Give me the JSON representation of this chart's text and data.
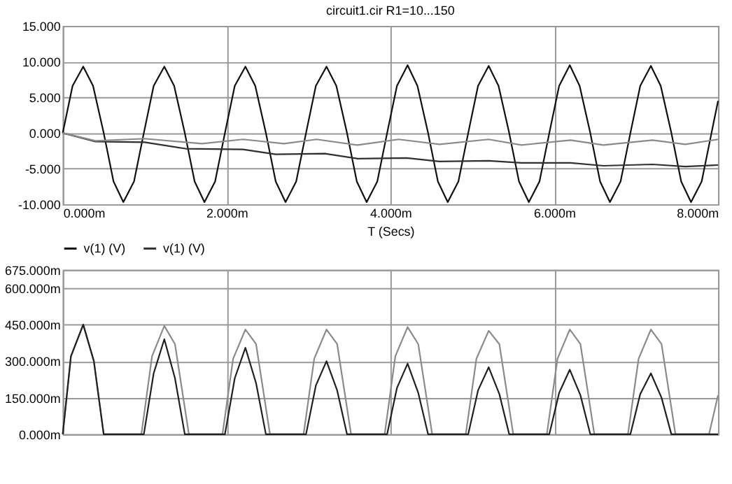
{
  "chart_data": [
    {
      "type": "line",
      "title": "circuit1.cir R1=10...150",
      "xlabel": "T (Secs)",
      "legend": "bottom left",
      "grid": true,
      "xlim": [
        0,
        8
      ],
      "ylim": [
        -10,
        15
      ],
      "xticks": [
        {
          "value": 0,
          "label": "0.000m"
        },
        {
          "value": 2,
          "label": "2.000m"
        },
        {
          "value": 4,
          "label": "4.000m"
        },
        {
          "value": 6,
          "label": "6.000m"
        },
        {
          "value": 8,
          "label": "8.000m"
        }
      ],
      "yticks": [
        {
          "value": -10,
          "label": "-10.000"
        },
        {
          "value": -5,
          "label": "-5.000"
        },
        {
          "value": 0,
          "label": "0.000"
        },
        {
          "value": 5,
          "label": "5.000"
        },
        {
          "value": 10,
          "label": "10.000"
        },
        {
          "value": 15,
          "label": "15.000"
        }
      ],
      "series": [
        {
          "name": "v(1) (V)",
          "color": "#101010",
          "x": [
            0,
            0.12,
            0.25,
            0.37,
            0.5,
            0.62,
            0.74,
            0.87,
            0.99,
            1.11,
            1.24,
            1.36,
            1.49,
            1.61,
            1.73,
            1.86,
            1.98,
            2.1,
            2.23,
            2.35,
            2.48,
            2.6,
            2.72,
            2.85,
            2.97,
            3.09,
            3.22,
            3.34,
            3.47,
            3.59,
            3.71,
            3.84,
            3.96,
            4.08,
            4.21,
            4.33,
            4.46,
            4.58,
            4.7,
            4.83,
            4.95,
            5.07,
            5.2,
            5.32,
            5.45,
            5.57,
            5.69,
            5.82,
            5.94,
            6.06,
            6.19,
            6.31,
            6.44,
            6.56,
            6.68,
            6.81,
            6.93,
            7.05,
            7.18,
            7.3,
            7.43,
            7.55,
            7.67,
            7.8,
            7.92,
            8
          ],
          "values": [
            0,
            6.6,
            9.3,
            6.6,
            0,
            -6.8,
            -9.7,
            -6.8,
            0,
            6.6,
            9.3,
            6.6,
            0,
            -6.8,
            -9.7,
            -6.8,
            0,
            6.6,
            9.3,
            6.6,
            0,
            -6.8,
            -9.7,
            -6.8,
            0,
            6.6,
            9.3,
            6.6,
            0,
            -6.8,
            -9.7,
            -6.8,
            0,
            6.6,
            9.5,
            6.6,
            0,
            -6.8,
            -9.7,
            -6.8,
            0,
            6.6,
            9.4,
            6.6,
            0,
            -6.8,
            -9.7,
            -6.8,
            0,
            6.6,
            9.5,
            6.6,
            0,
            -6.8,
            -9.7,
            -6.8,
            0,
            6.6,
            9.4,
            6.6,
            0,
            -6.8,
            -9.7,
            -6.8,
            0,
            4.5
          ]
        },
        {
          "name": "v(1) (V)",
          "color": "#303030",
          "x": [
            0,
            0.4,
            1,
            1.5,
            2.2,
            2.6,
            3.2,
            3.6,
            4.2,
            4.6,
            5.2,
            5.6,
            6.2,
            6.6,
            7.2,
            7.6,
            8
          ],
          "values": [
            0,
            -1.2,
            -1.3,
            -2.2,
            -2.3,
            -3.0,
            -2.9,
            -3.6,
            -3.5,
            -4.0,
            -3.9,
            -4.2,
            -4.2,
            -4.6,
            -4.4,
            -4.7,
            -4.5
          ]
        },
        {
          "color": "#8a8a8a",
          "x": [
            0,
            0.4,
            1,
            1.7,
            2.2,
            2.7,
            3.1,
            3.6,
            4.1,
            4.6,
            5.2,
            5.6,
            6.2,
            6.6,
            7.2,
            7.6,
            8
          ],
          "values": [
            0,
            -1.1,
            -0.8,
            -1.5,
            -0.9,
            -1.5,
            -0.9,
            -1.7,
            -0.9,
            -1.6,
            -0.9,
            -1.7,
            -1.0,
            -1.7,
            -1.0,
            -1.6,
            -0.9
          ]
        }
      ]
    },
    {
      "type": "line",
      "grid": true,
      "tick_labels": "y",
      "xlim": [
        0,
        8
      ],
      "ylim": [
        0,
        675
      ],
      "xticks": [
        {
          "value": 0,
          "label": null
        },
        {
          "value": 2,
          "label": null
        },
        {
          "value": 4,
          "label": null
        },
        {
          "value": 6,
          "label": null
        },
        {
          "value": 8,
          "label": null
        }
      ],
      "yticks": [
        {
          "value": 0,
          "label": "0.000m"
        },
        {
          "value": 150,
          "label": "150.000m"
        },
        {
          "value": 300,
          "label": "300.000m"
        },
        {
          "value": 450,
          "label": "450.000m"
        },
        {
          "value": 600,
          "label": "600.000m"
        },
        {
          "value": 675,
          "label": "675.000m"
        }
      ],
      "series": [
        {
          "color": "#8a8a8a",
          "x": [
            0,
            0.1,
            0.25,
            0.38,
            0.5,
            0.96,
            1.09,
            1.24,
            1.37,
            1.54,
            1.95,
            2.08,
            2.23,
            2.36,
            2.53,
            2.94,
            3.07,
            3.22,
            3.35,
            3.52,
            3.93,
            4.06,
            4.21,
            4.34,
            4.51,
            4.92,
            5.05,
            5.2,
            5.33,
            5.5,
            5.91,
            6.04,
            6.19,
            6.32,
            6.49,
            6.9,
            7.03,
            7.18,
            7.31,
            7.48,
            7.89,
            8
          ],
          "values": [
            0,
            320,
            450,
            300,
            0,
            0,
            320,
            445,
            370,
            0,
            0,
            310,
            430,
            370,
            0,
            0,
            310,
            430,
            370,
            0,
            0,
            320,
            440,
            370,
            0,
            0,
            310,
            425,
            370,
            0,
            0,
            310,
            430,
            370,
            0,
            0,
            310,
            430,
            370,
            0,
            0,
            160
          ]
        },
        {
          "color": "#202020",
          "x": [
            0,
            0.1,
            0.25,
            0.38,
            0.5,
            0.99,
            1.11,
            1.24,
            1.37,
            1.49,
            1.98,
            2.1,
            2.23,
            2.36,
            2.48,
            2.97,
            3.09,
            3.22,
            3.35,
            3.47,
            3.96,
            4.08,
            4.21,
            4.34,
            4.46,
            4.95,
            5.07,
            5.2,
            5.33,
            5.45,
            5.94,
            6.06,
            6.19,
            6.32,
            6.44,
            6.93,
            7.05,
            7.18,
            7.31,
            7.43,
            8
          ],
          "values": [
            0,
            320,
            450,
            300,
            0,
            0,
            250,
            390,
            230,
            0,
            0,
            230,
            355,
            210,
            0,
            0,
            200,
            300,
            180,
            0,
            0,
            190,
            290,
            170,
            0,
            0,
            180,
            275,
            165,
            0,
            0,
            170,
            265,
            160,
            0,
            0,
            165,
            250,
            150,
            0,
            0
          ]
        }
      ]
    }
  ]
}
